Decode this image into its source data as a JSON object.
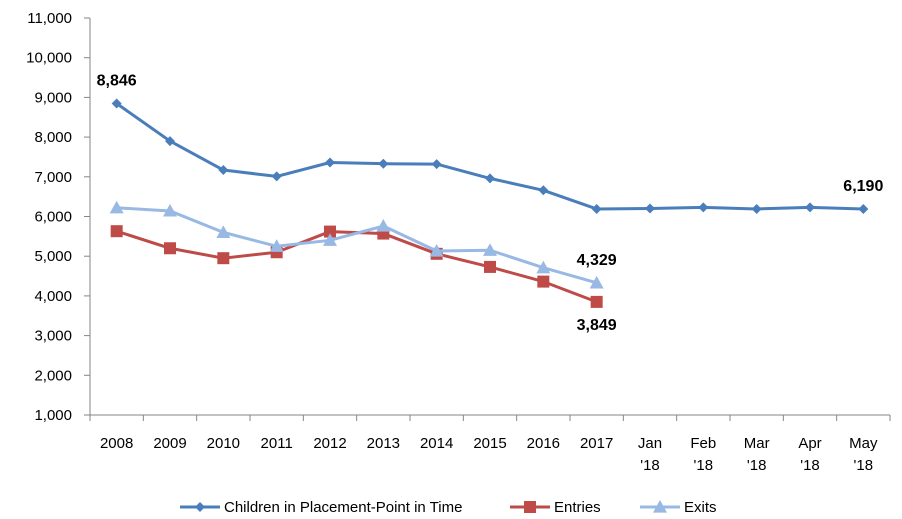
{
  "chart_data": {
    "type": "line",
    "categories": [
      "2008",
      "2009",
      "2010",
      "2011",
      "2012",
      "2013",
      "2014",
      "2015",
      "2016",
      "2017",
      "Jan '18",
      "Feb '18",
      "Mar '18",
      "Apr '18",
      "May '18"
    ],
    "category_lines": [
      [
        "2008"
      ],
      [
        "2009"
      ],
      [
        "2010"
      ],
      [
        "2011"
      ],
      [
        "2012"
      ],
      [
        "2013"
      ],
      [
        "2014"
      ],
      [
        "2015"
      ],
      [
        "2016"
      ],
      [
        "2017"
      ],
      [
        "Jan",
        "'18"
      ],
      [
        "Feb",
        "'18"
      ],
      [
        "Mar",
        "'18"
      ],
      [
        "Apr",
        "'18"
      ],
      [
        "May",
        "'18"
      ]
    ],
    "ylim": [
      1000,
      11000
    ],
    "yticks": [
      1000,
      2000,
      3000,
      4000,
      5000,
      6000,
      7000,
      8000,
      9000,
      10000,
      11000
    ],
    "ytick_labels": [
      "1,000",
      "2,000",
      "3,000",
      "4,000",
      "5,000",
      "6,000",
      "7,000",
      "8,000",
      "9,000",
      "10,000",
      "11,000"
    ],
    "grid": false,
    "legend_position": "bottom",
    "series": [
      {
        "name": "Children in Placement-Point in Time",
        "color": "#4a7ebb",
        "marker": "diamond",
        "values": [
          8846,
          7900,
          7170,
          7010,
          7360,
          7330,
          7320,
          6960,
          6660,
          6190,
          6200,
          6230,
          6190,
          6230,
          6190
        ]
      },
      {
        "name": "Entries",
        "color": "#be4b48",
        "marker": "square",
        "values": [
          5630,
          5200,
          4950,
          5100,
          5620,
          5570,
          5060,
          4730,
          4360,
          3849,
          null,
          null,
          null,
          null,
          null
        ]
      },
      {
        "name": "Exits",
        "color": "#98b9e3",
        "marker": "triangle",
        "values": [
          6220,
          6140,
          5600,
          5250,
          5400,
          5760,
          5130,
          5150,
          4710,
          4329,
          null,
          null,
          null,
          null,
          null
        ]
      }
    ],
    "annotations": [
      {
        "series": 0,
        "index": 0,
        "text": "8,846",
        "pos": "above"
      },
      {
        "series": 0,
        "index": 14,
        "text": "6,190",
        "pos": "above"
      },
      {
        "series": 2,
        "index": 9,
        "text": "4,329",
        "pos": "above"
      },
      {
        "series": 1,
        "index": 9,
        "text": "3,849",
        "pos": "below"
      }
    ]
  }
}
